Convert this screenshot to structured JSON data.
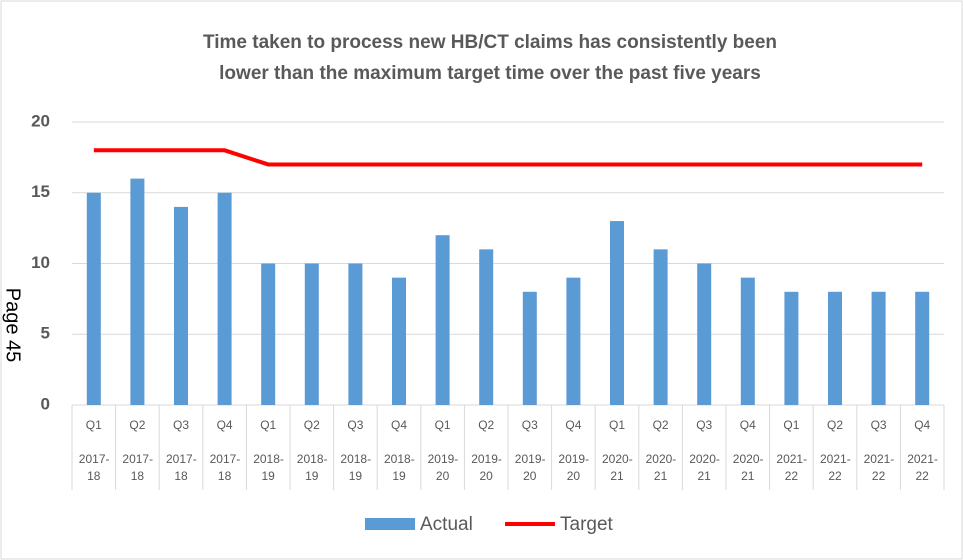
{
  "page_label": "Page 45",
  "chart_data": {
    "type": "bar_line",
    "title": [
      "Time taken to process new HB/CT claims has consistently been",
      "lower than the maximum target time over the past five years"
    ],
    "categories": [
      "Q1",
      "Q2",
      "Q3",
      "Q4",
      "Q1",
      "Q2",
      "Q3",
      "Q4",
      "Q1",
      "Q2",
      "Q3",
      "Q4",
      "Q1",
      "Q2",
      "Q3",
      "Q4",
      "Q1",
      "Q2",
      "Q3",
      "Q4"
    ],
    "years": [
      "2017-18",
      "2017-18",
      "2017-18",
      "2017-18",
      "2018-19",
      "2018-19",
      "2018-19",
      "2018-19",
      "2019-20",
      "2019-20",
      "2019-20",
      "2019-20",
      "2020-21",
      "2020-21",
      "2020-21",
      "2020-21",
      "2021-22",
      "2021-22",
      "2021-22",
      "2021-22"
    ],
    "series": [
      {
        "name": "Actual",
        "type": "bar",
        "color": "#5b9bd5",
        "values": [
          15,
          16,
          14,
          15,
          10,
          10,
          10,
          9,
          12,
          11,
          8,
          9,
          13,
          11,
          10,
          9,
          8,
          8,
          8,
          8
        ]
      },
      {
        "name": "Target",
        "type": "line",
        "color": "#ff0000",
        "values": [
          18,
          18,
          18,
          18,
          17,
          17,
          17,
          17,
          17,
          17,
          17,
          17,
          17,
          17,
          17,
          17,
          17,
          17,
          17,
          17
        ]
      }
    ],
    "ylim": [
      0,
      20
    ],
    "yticks": [
      0,
      5,
      10,
      15,
      20
    ],
    "grid": true,
    "legend": "bottom"
  }
}
